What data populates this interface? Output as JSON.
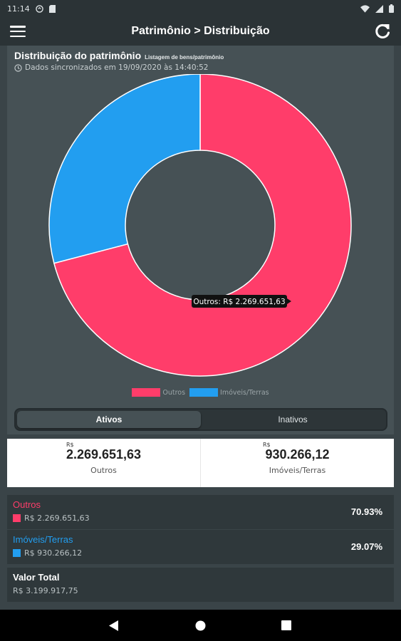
{
  "status_bar": {
    "time": "11:14"
  },
  "app_bar": {
    "title": "Patrimônio > Distribuição"
  },
  "card": {
    "title": "Distribuição do patrimônio",
    "subtitle": "Listagem de bens/patrimônio",
    "sync_text": "Dados sincronizados em 19/09/2020 às 14:40:52"
  },
  "chart_data": {
    "type": "pie",
    "donut": true,
    "categories": [
      "Outros",
      "Imóveis/Terras"
    ],
    "values": [
      2269651.63,
      930266.12
    ],
    "colors": [
      "#ff3d6a",
      "#229ef0"
    ],
    "legend_position": "bottom",
    "tooltip": "Outros: R$ 2.269.651,63"
  },
  "tabs": [
    {
      "label": "Ativos",
      "active": true
    },
    {
      "label": "Inativos",
      "active": false
    }
  ],
  "summary": [
    {
      "currency": "R$",
      "value": "2.269.651,63",
      "label": "Outros"
    },
    {
      "currency": "R$",
      "value": "930.266,12",
      "label": "Imóveis/Terras"
    }
  ],
  "rows": [
    {
      "name": "Outros",
      "amount": "R$ 2.269.651,63",
      "percent": "70.93%",
      "color": "#ff3d6a"
    },
    {
      "name": "Imóveis/Terras",
      "amount": "R$ 930.266,12",
      "percent": "29.07%",
      "color": "#229ef0"
    }
  ],
  "total": {
    "label": "Valor Total",
    "amount": "R$ 3.199.917,75"
  }
}
